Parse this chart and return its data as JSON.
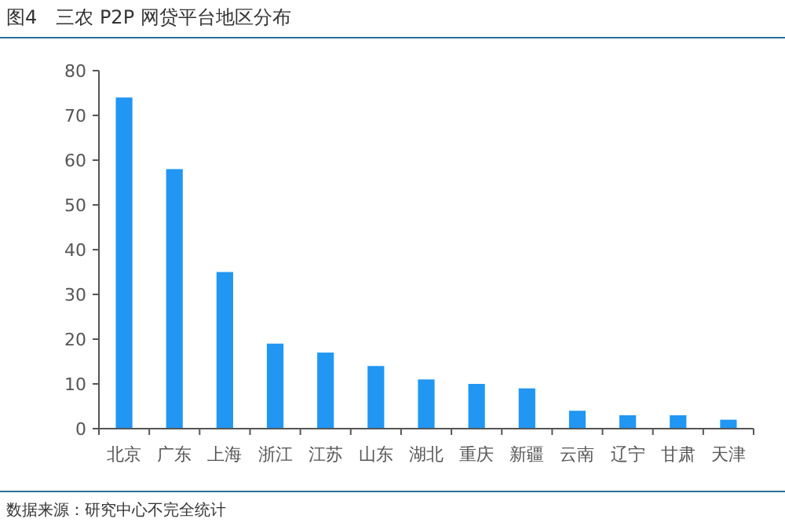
{
  "chart_data": {
    "type": "bar",
    "title": "图4　三农 P2P 网贷平台地区分布",
    "categories": [
      "北京",
      "广东",
      "上海",
      "浙江",
      "江苏",
      "山东",
      "湖北",
      "重庆",
      "新疆",
      "云南",
      "辽宁",
      "甘肃",
      "天津"
    ],
    "values": [
      74,
      58,
      35,
      19,
      17,
      14,
      11,
      10,
      9,
      4,
      3,
      3,
      2
    ],
    "color": "#2196f3",
    "ylim": [
      0,
      80
    ],
    "yticks": [
      0,
      10,
      20,
      30,
      40,
      50,
      60,
      70,
      80
    ],
    "grid": false,
    "annotations": [
      "数据来源：研究中心不完全统计"
    ]
  }
}
